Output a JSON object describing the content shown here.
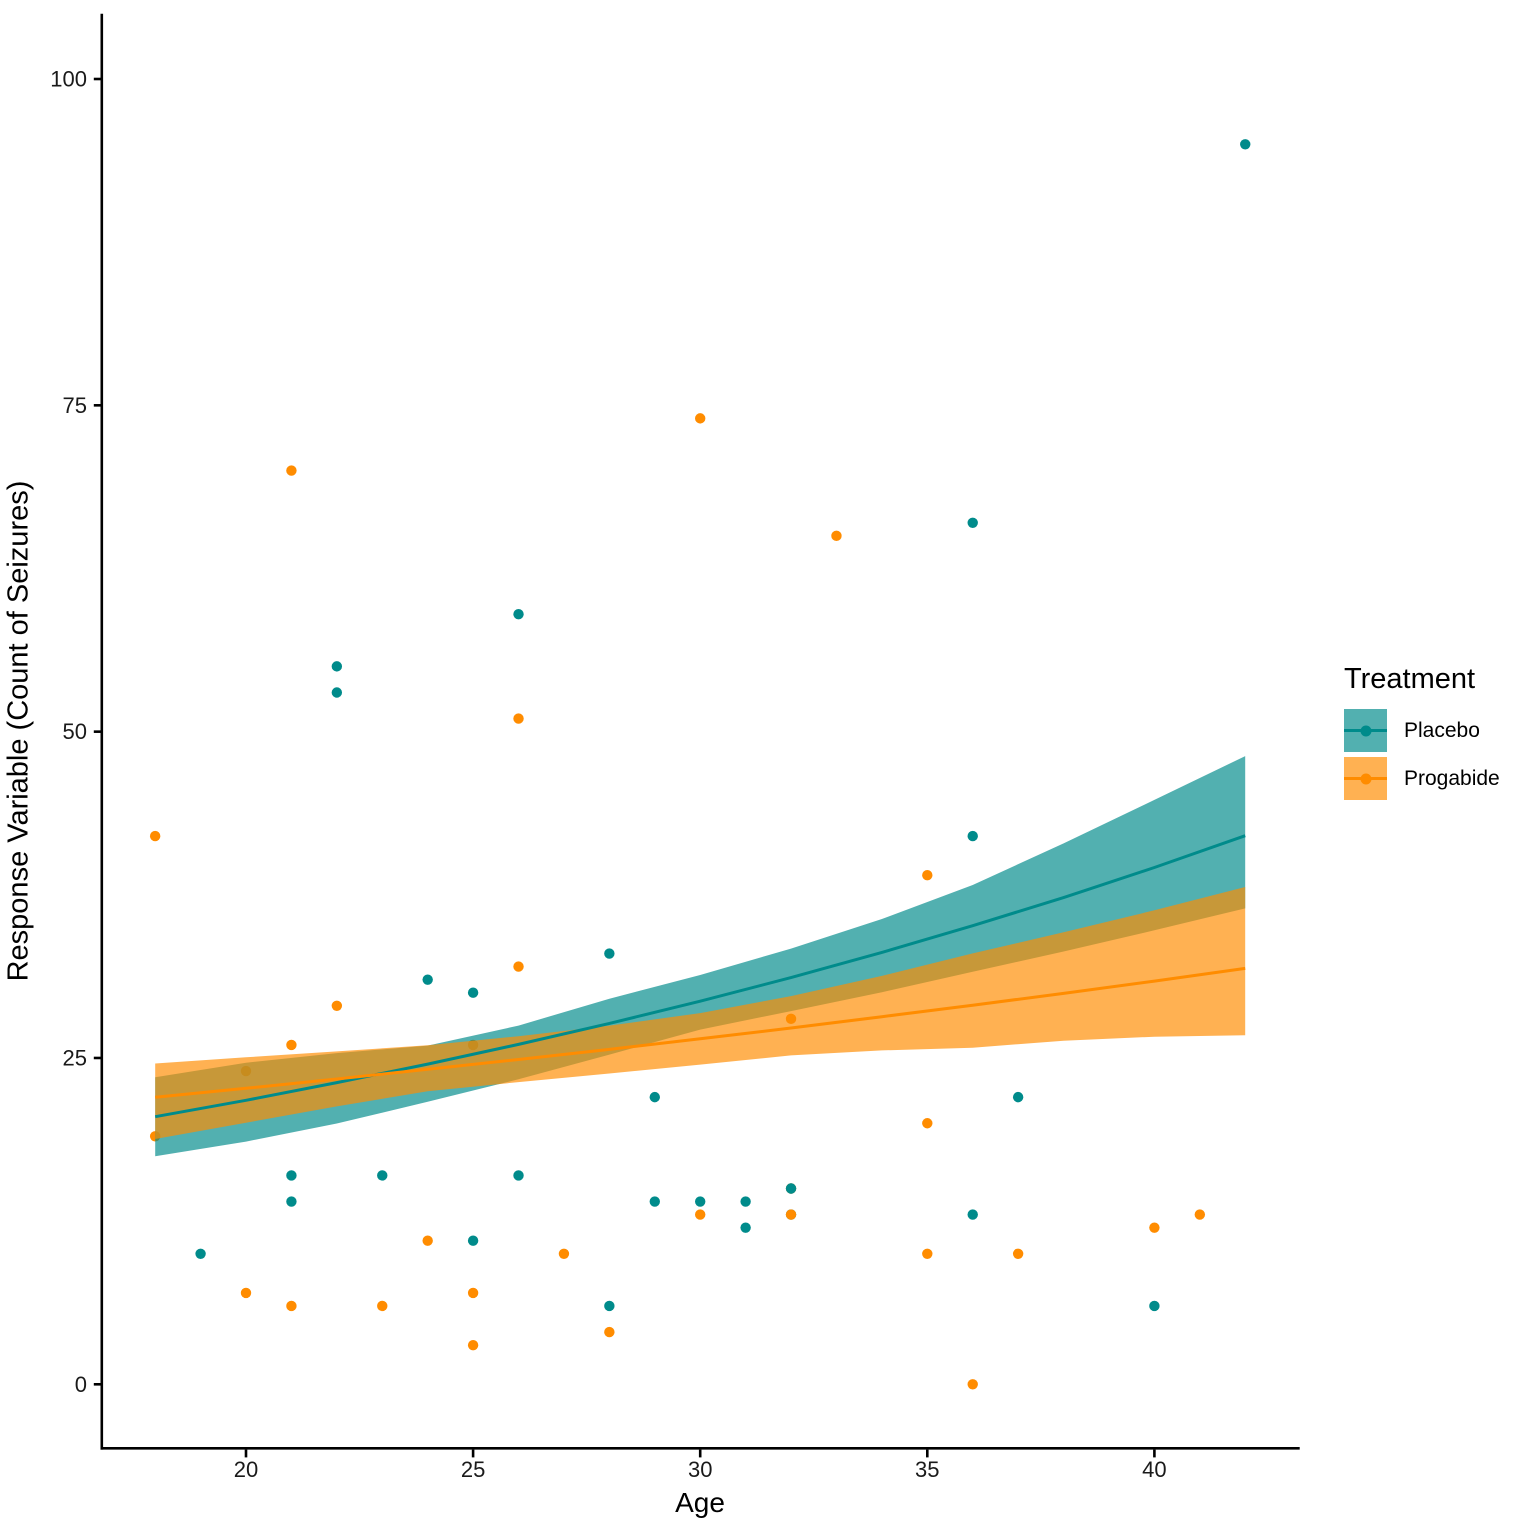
{
  "chart_data": {
    "type": "scatter",
    "title": "",
    "xlabel": "Age",
    "ylabel": "Response Variable (Count of Seizures)",
    "x_ticks": [
      20,
      25,
      30,
      35,
      40
    ],
    "y_ticks": [
      0,
      25,
      50,
      75,
      100
    ],
    "xlim": [
      16.8,
      43.2
    ],
    "ylim": [
      -5,
      105
    ],
    "grid": false,
    "background": "#ffffff",
    "axis_color": "#000000",
    "tick_label_color": "#1a1a1a",
    "legend": {
      "title": "Treatment",
      "position": "right"
    },
    "series": [
      {
        "name": "Placebo",
        "color": "#008B8B",
        "ribbon_opacity": 0.68,
        "points": [
          [
            31,
            14
          ],
          [
            30,
            14
          ],
          [
            25,
            11
          ],
          [
            36,
            13
          ],
          [
            22,
            55
          ],
          [
            29,
            22
          ],
          [
            31,
            12
          ],
          [
            42,
            95
          ],
          [
            37,
            22
          ],
          [
            28,
            33
          ],
          [
            36,
            66
          ],
          [
            24,
            31
          ],
          [
            23,
            16
          ],
          [
            36,
            42
          ],
          [
            26,
            59
          ],
          [
            26,
            16
          ],
          [
            28,
            6
          ],
          [
            32,
            15
          ],
          [
            21,
            16
          ],
          [
            29,
            14
          ],
          [
            21,
            14
          ],
          [
            32,
            13
          ],
          [
            25,
            30
          ],
          [
            40,
            6
          ],
          [
            19,
            10
          ],
          [
            22,
            53
          ]
        ],
        "smooth": {
          "ages": [
            18,
            20,
            22,
            24,
            26,
            28,
            30,
            32,
            34,
            36,
            38,
            40,
            42
          ],
          "fit": [
            20.5,
            21.76,
            23.11,
            24.53,
            26.04,
            27.65,
            29.35,
            31.16,
            33.09,
            35.13,
            37.29,
            39.59,
            42.03
          ],
          "lower": [
            17.47,
            18.59,
            19.98,
            21.64,
            23.37,
            25.26,
            27.17,
            28.59,
            30.04,
            31.6,
            33.16,
            34.78,
            36.46
          ],
          "upper": [
            23.53,
            24.64,
            25.37,
            25.95,
            27.48,
            29.54,
            31.36,
            33.38,
            35.65,
            38.25,
            41.44,
            44.77,
            48.13
          ]
        }
      },
      {
        "name": "Progabide",
        "color": "#FF8C00",
        "ribbon_opacity": 0.68,
        "points": [
          [
            18,
            42
          ],
          [
            32,
            28
          ],
          [
            20,
            7
          ],
          [
            30,
            13
          ],
          [
            18,
            19
          ],
          [
            24,
            11
          ],
          [
            30,
            74
          ],
          [
            35,
            20
          ],
          [
            27,
            10
          ],
          [
            20,
            24
          ],
          [
            22,
            29
          ],
          [
            28,
            4
          ],
          [
            23,
            6
          ],
          [
            40,
            12
          ],
          [
            33,
            65
          ],
          [
            21,
            26
          ],
          [
            35,
            39
          ],
          [
            25,
            7
          ],
          [
            26,
            32
          ],
          [
            25,
            3
          ],
          [
            32,
            13
          ],
          [
            25,
            26
          ],
          [
            35,
            10
          ],
          [
            21,
            70
          ],
          [
            41,
            13
          ],
          [
            32,
            15
          ],
          [
            26,
            51
          ],
          [
            21,
            6
          ],
          [
            36,
            0
          ],
          [
            37,
            10
          ]
        ],
        "smooth": {
          "ages": [
            18,
            20,
            22,
            24,
            26,
            28,
            30,
            32,
            34,
            36,
            38,
            40,
            42
          ],
          "fit": [
            21.99,
            22.68,
            23.39,
            24.13,
            24.88,
            25.66,
            26.47,
            27.3,
            28.16,
            29.04,
            29.95,
            30.89,
            31.86
          ],
          "lower": [
            18.79,
            20.04,
            21.29,
            22.45,
            23.15,
            23.81,
            24.49,
            25.2,
            25.58,
            25.79,
            26.32,
            26.63,
            26.74
          ],
          "upper": [
            24.58,
            25.05,
            25.5,
            25.97,
            26.67,
            27.48,
            28.44,
            29.74,
            31.29,
            33.01,
            34.63,
            36.31,
            38.1
          ]
        }
      }
    ]
  }
}
